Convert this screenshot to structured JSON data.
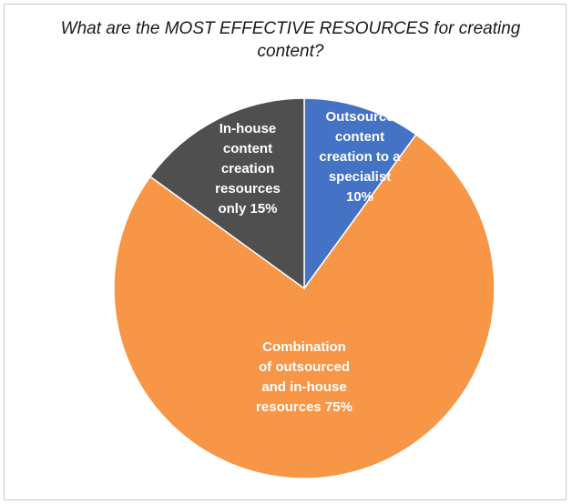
{
  "chart_data": {
    "type": "pie",
    "title": "What are the MOST EFFECTIVE RESOURCES for creating content?",
    "slices": [
      {
        "label": "Outsource content creation to a specialist",
        "label_lines": [
          "Outsource",
          "content",
          "creation to a",
          "specialist",
          "10%"
        ],
        "value": 10,
        "color": "#4472c4"
      },
      {
        "label": "Combination of outsourced and in-house resources",
        "label_lines": [
          "Combination",
          "of outsourced",
          "and in-house",
          "resources 75%"
        ],
        "value": 75,
        "color": "#f79646"
      },
      {
        "label": "In-house content creation resources only",
        "label_lines": [
          "In-house",
          "content",
          "creation",
          "resources",
          "only 15%"
        ],
        "value": 15,
        "color": "#4f4f4f"
      }
    ],
    "start_angle_deg": 0,
    "direction": "clockwise",
    "legend": "none",
    "data_labels": "inside"
  }
}
